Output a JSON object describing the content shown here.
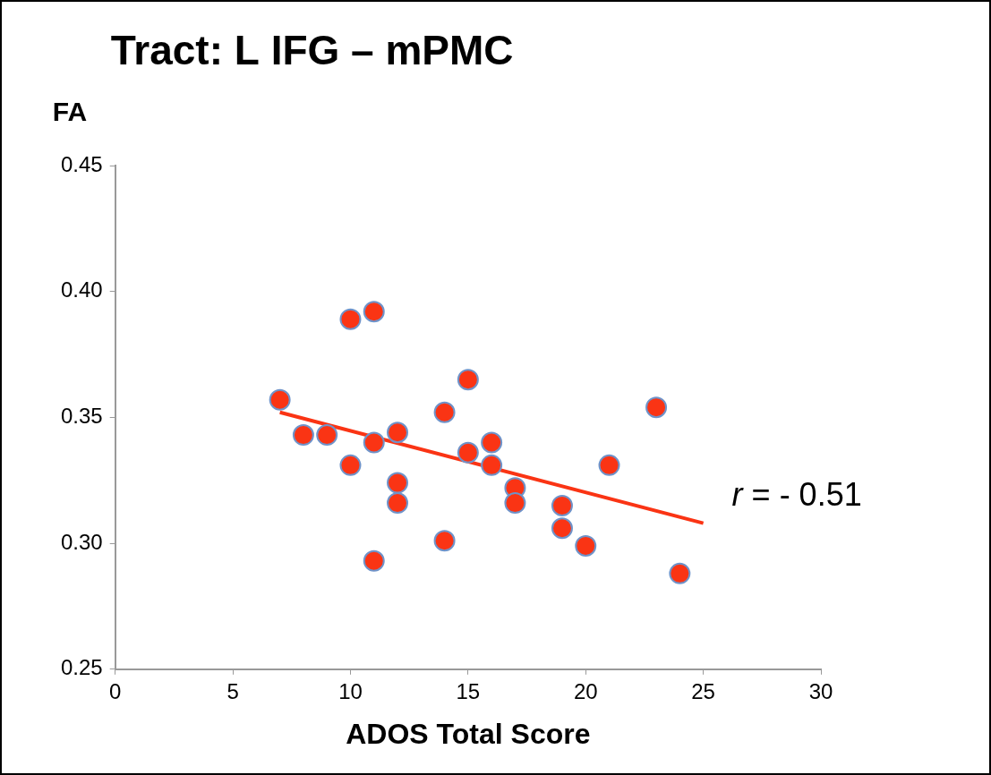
{
  "chart_data": {
    "type": "scatter",
    "title": "Tract: L IFG – mPMC",
    "x_label": "ADOS Total Score",
    "y_label": "FA",
    "annotations": [
      "r = - 0.51"
    ],
    "series": [
      {
        "type": "scatter",
        "color": "#fa3414",
        "marker": "circle",
        "x": [
          7,
          8,
          9,
          10,
          10,
          11,
          11,
          11,
          12,
          12,
          12,
          14,
          14,
          15,
          15,
          16,
          16,
          17,
          17,
          19,
          19,
          20,
          21,
          23,
          24
        ],
        "values": [
          0.357,
          0.343,
          0.343,
          0.389,
          0.331,
          0.392,
          0.34,
          0.293,
          0.344,
          0.324,
          0.316,
          0.352,
          0.301,
          0.365,
          0.336,
          0.34,
          0.331,
          0.322,
          0.316,
          0.315,
          0.306,
          0.299,
          0.331,
          0.354,
          0.288
        ]
      },
      {
        "type": "line",
        "color": "#fa3414",
        "line_style": "solid",
        "x": [
          7,
          25
        ],
        "values": [
          0.352,
          0.308
        ]
      }
    ],
    "xlim": [
      0,
      30
    ],
    "xticks": [
      0,
      5,
      10,
      15,
      20,
      25,
      30
    ],
    "ylim": [
      0.25,
      0.45
    ],
    "yticks": [
      0.25,
      {
        "value": 0.3,
        "label": "0.30"
      },
      0.35,
      {
        "value": 0.4,
        "label": "0.40"
      },
      0.45
    ],
    "grid": false
  }
}
